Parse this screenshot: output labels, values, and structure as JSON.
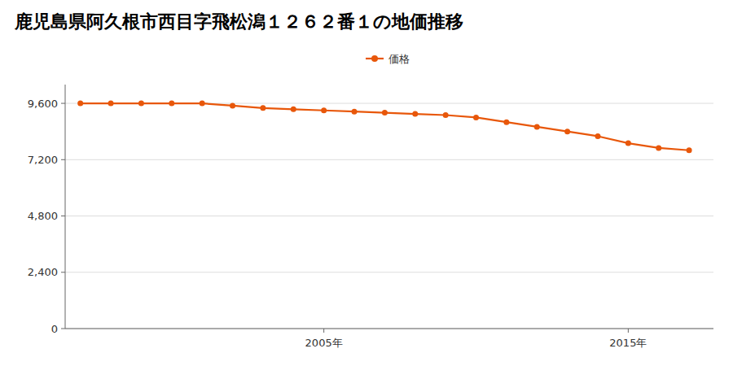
{
  "chart_data": {
    "type": "line",
    "title": "鹿児島県阿久根市西目字飛松潟１２６２番１の地価推移",
    "x": [
      1997,
      1998,
      1999,
      2000,
      2001,
      2002,
      2003,
      2004,
      2005,
      2006,
      2007,
      2008,
      2009,
      2010,
      2011,
      2012,
      2013,
      2014,
      2015,
      2016,
      2017
    ],
    "series": [
      {
        "name": "価格",
        "color": "#e8570a",
        "marker": "circle",
        "line_style": "solid",
        "values": [
          9600,
          9600,
          9600,
          9600,
          9600,
          9500,
          9400,
          9350,
          9300,
          9250,
          9200,
          9150,
          9100,
          9000,
          8800,
          8600,
          8400,
          8200,
          7900,
          7700,
          7600
        ]
      }
    ],
    "xlim": [
      1996.5,
      2017.8
    ],
    "xticks": [
      {
        "value": 2005,
        "label": "2005年"
      },
      {
        "value": 2015,
        "label": "2015年"
      }
    ],
    "ylim": [
      0,
      10400
    ],
    "yticks": [
      0,
      {
        "value": 2400,
        "label": "2,400"
      },
      {
        "value": 4800,
        "label": "4,800"
      },
      {
        "value": 7200,
        "label": "7,200"
      },
      {
        "value": 9600,
        "label": "9,600"
      }
    ],
    "grid": true,
    "legend": "top"
  }
}
